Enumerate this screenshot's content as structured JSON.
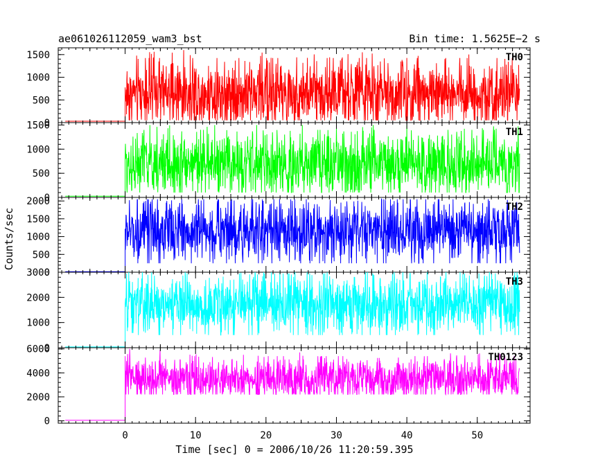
{
  "title_left": "ae061026112059_wam3_bst",
  "title_right": "Bin time: 1.5625E−2 s",
  "ylabel": "Counts/sec",
  "xlabel": "Time [sec] 0 = 2006/10/26 11:20:59.395",
  "chart_data": [
    {
      "type": "line",
      "name": "TH0",
      "color": "#ff0000",
      "ylim": [
        0,
        1650
      ],
      "yticks": [
        0,
        500,
        1000,
        1500
      ],
      "xlim": [
        -9.5,
        57.5
      ],
      "pre_level": 30,
      "mean": 650,
      "min": 50,
      "max": 1600
    },
    {
      "type": "line",
      "name": "TH1",
      "color": "#00ff00",
      "ylim": [
        0,
        1550
      ],
      "yticks": [
        0,
        500,
        1000,
        1500
      ],
      "xlim": [
        -9.5,
        57.5
      ],
      "pre_level": 25,
      "mean": 700,
      "min": 100,
      "max": 1500
    },
    {
      "type": "line",
      "name": "TH2",
      "color": "#0000ff",
      "ylim": [
        0,
        2100
      ],
      "yticks": [
        0,
        500,
        1000,
        1500,
        2000
      ],
      "xlim": [
        -9.5,
        57.5
      ],
      "pre_level": 15,
      "mean": 1150,
      "min": 250,
      "max": 2050
    },
    {
      "type": "line",
      "name": "TH3",
      "color": "#00ffff",
      "ylim": [
        0,
        3000
      ],
      "yticks": [
        0,
        1000,
        2000,
        3000
      ],
      "xlim": [
        -9.5,
        57.5
      ],
      "pre_level": 30,
      "mean": 1700,
      "min": 500,
      "max": 3000
    },
    {
      "type": "line",
      "name": "TH0123",
      "color": "#ff00ff",
      "ylim": [
        -200,
        6100
      ],
      "yticks": [
        0,
        2000,
        4000,
        6000
      ],
      "xticks": [
        0,
        10,
        20,
        30,
        40,
        50
      ],
      "xlim": [
        -9.5,
        57.5
      ],
      "pre_level": 50,
      "mean": 3500,
      "min": 2200,
      "max": 6000
    }
  ]
}
